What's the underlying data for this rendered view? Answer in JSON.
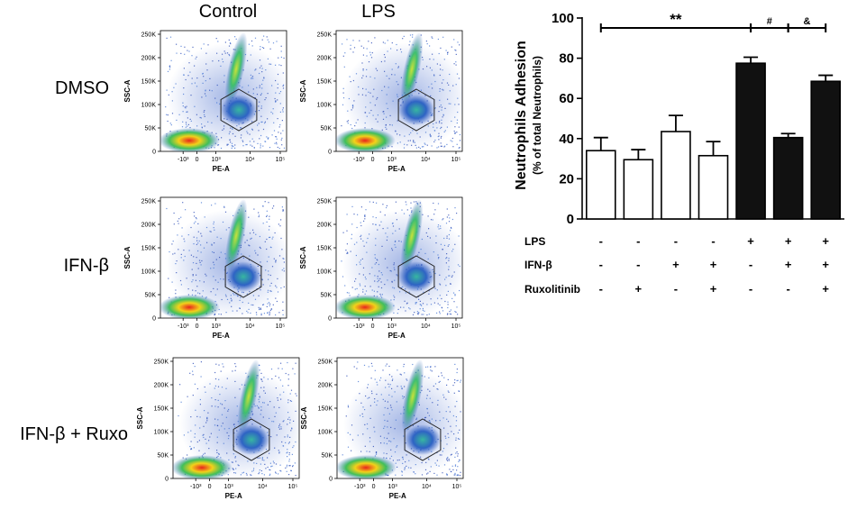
{
  "figure": {
    "col_labels": [
      "Control",
      "LPS"
    ],
    "row_labels": [
      "DMSO",
      "IFN-β",
      "IFN-β + Ruxo"
    ],
    "flow_panels": {
      "y_axis_label": "SSC-A",
      "x_axis_label": "PE-A",
      "y_ticks": [
        "250K",
        "200K",
        "150K",
        "100K",
        "50K",
        "0"
      ],
      "x_ticks": [
        "-10³",
        "0",
        "10³",
        "10⁴",
        "10⁵"
      ]
    }
  },
  "chart_data": {
    "type": "bar",
    "title": "",
    "ylabel": "Neutrophils Adhesion",
    "ylabel_sub": "(% of total Neutrophils)",
    "ylim": [
      0,
      100
    ],
    "yticks": [
      0,
      20,
      40,
      60,
      80,
      100
    ],
    "values": [
      34,
      29.5,
      43.5,
      31.5,
      77.5,
      40.5,
      68.5
    ],
    "errors": [
      6.5,
      5,
      8,
      7,
      3,
      2,
      3
    ],
    "bar_colors": [
      "#ffffff",
      "#ffffff",
      "#ffffff",
      "#ffffff",
      "#111111",
      "#111111",
      "#111111"
    ],
    "conditions": [
      {
        "label": "LPS",
        "signs": [
          "-",
          "-",
          "-",
          "-",
          "+",
          "+",
          "+"
        ]
      },
      {
        "label": "IFN-β",
        "signs": [
          "-",
          "-",
          "+",
          "+",
          "-",
          "+",
          "+"
        ]
      },
      {
        "label": "Ruxolitinib",
        "signs": [
          "-",
          "+",
          "-",
          "+",
          "-",
          "-",
          "+"
        ]
      }
    ],
    "significance": [
      {
        "label": "**",
        "from_bar": 0,
        "to_bar": 4
      },
      {
        "label": "#",
        "from_bar": 4,
        "to_bar": 5
      },
      {
        "label": "&",
        "from_bar": 5,
        "to_bar": 6
      }
    ]
  }
}
